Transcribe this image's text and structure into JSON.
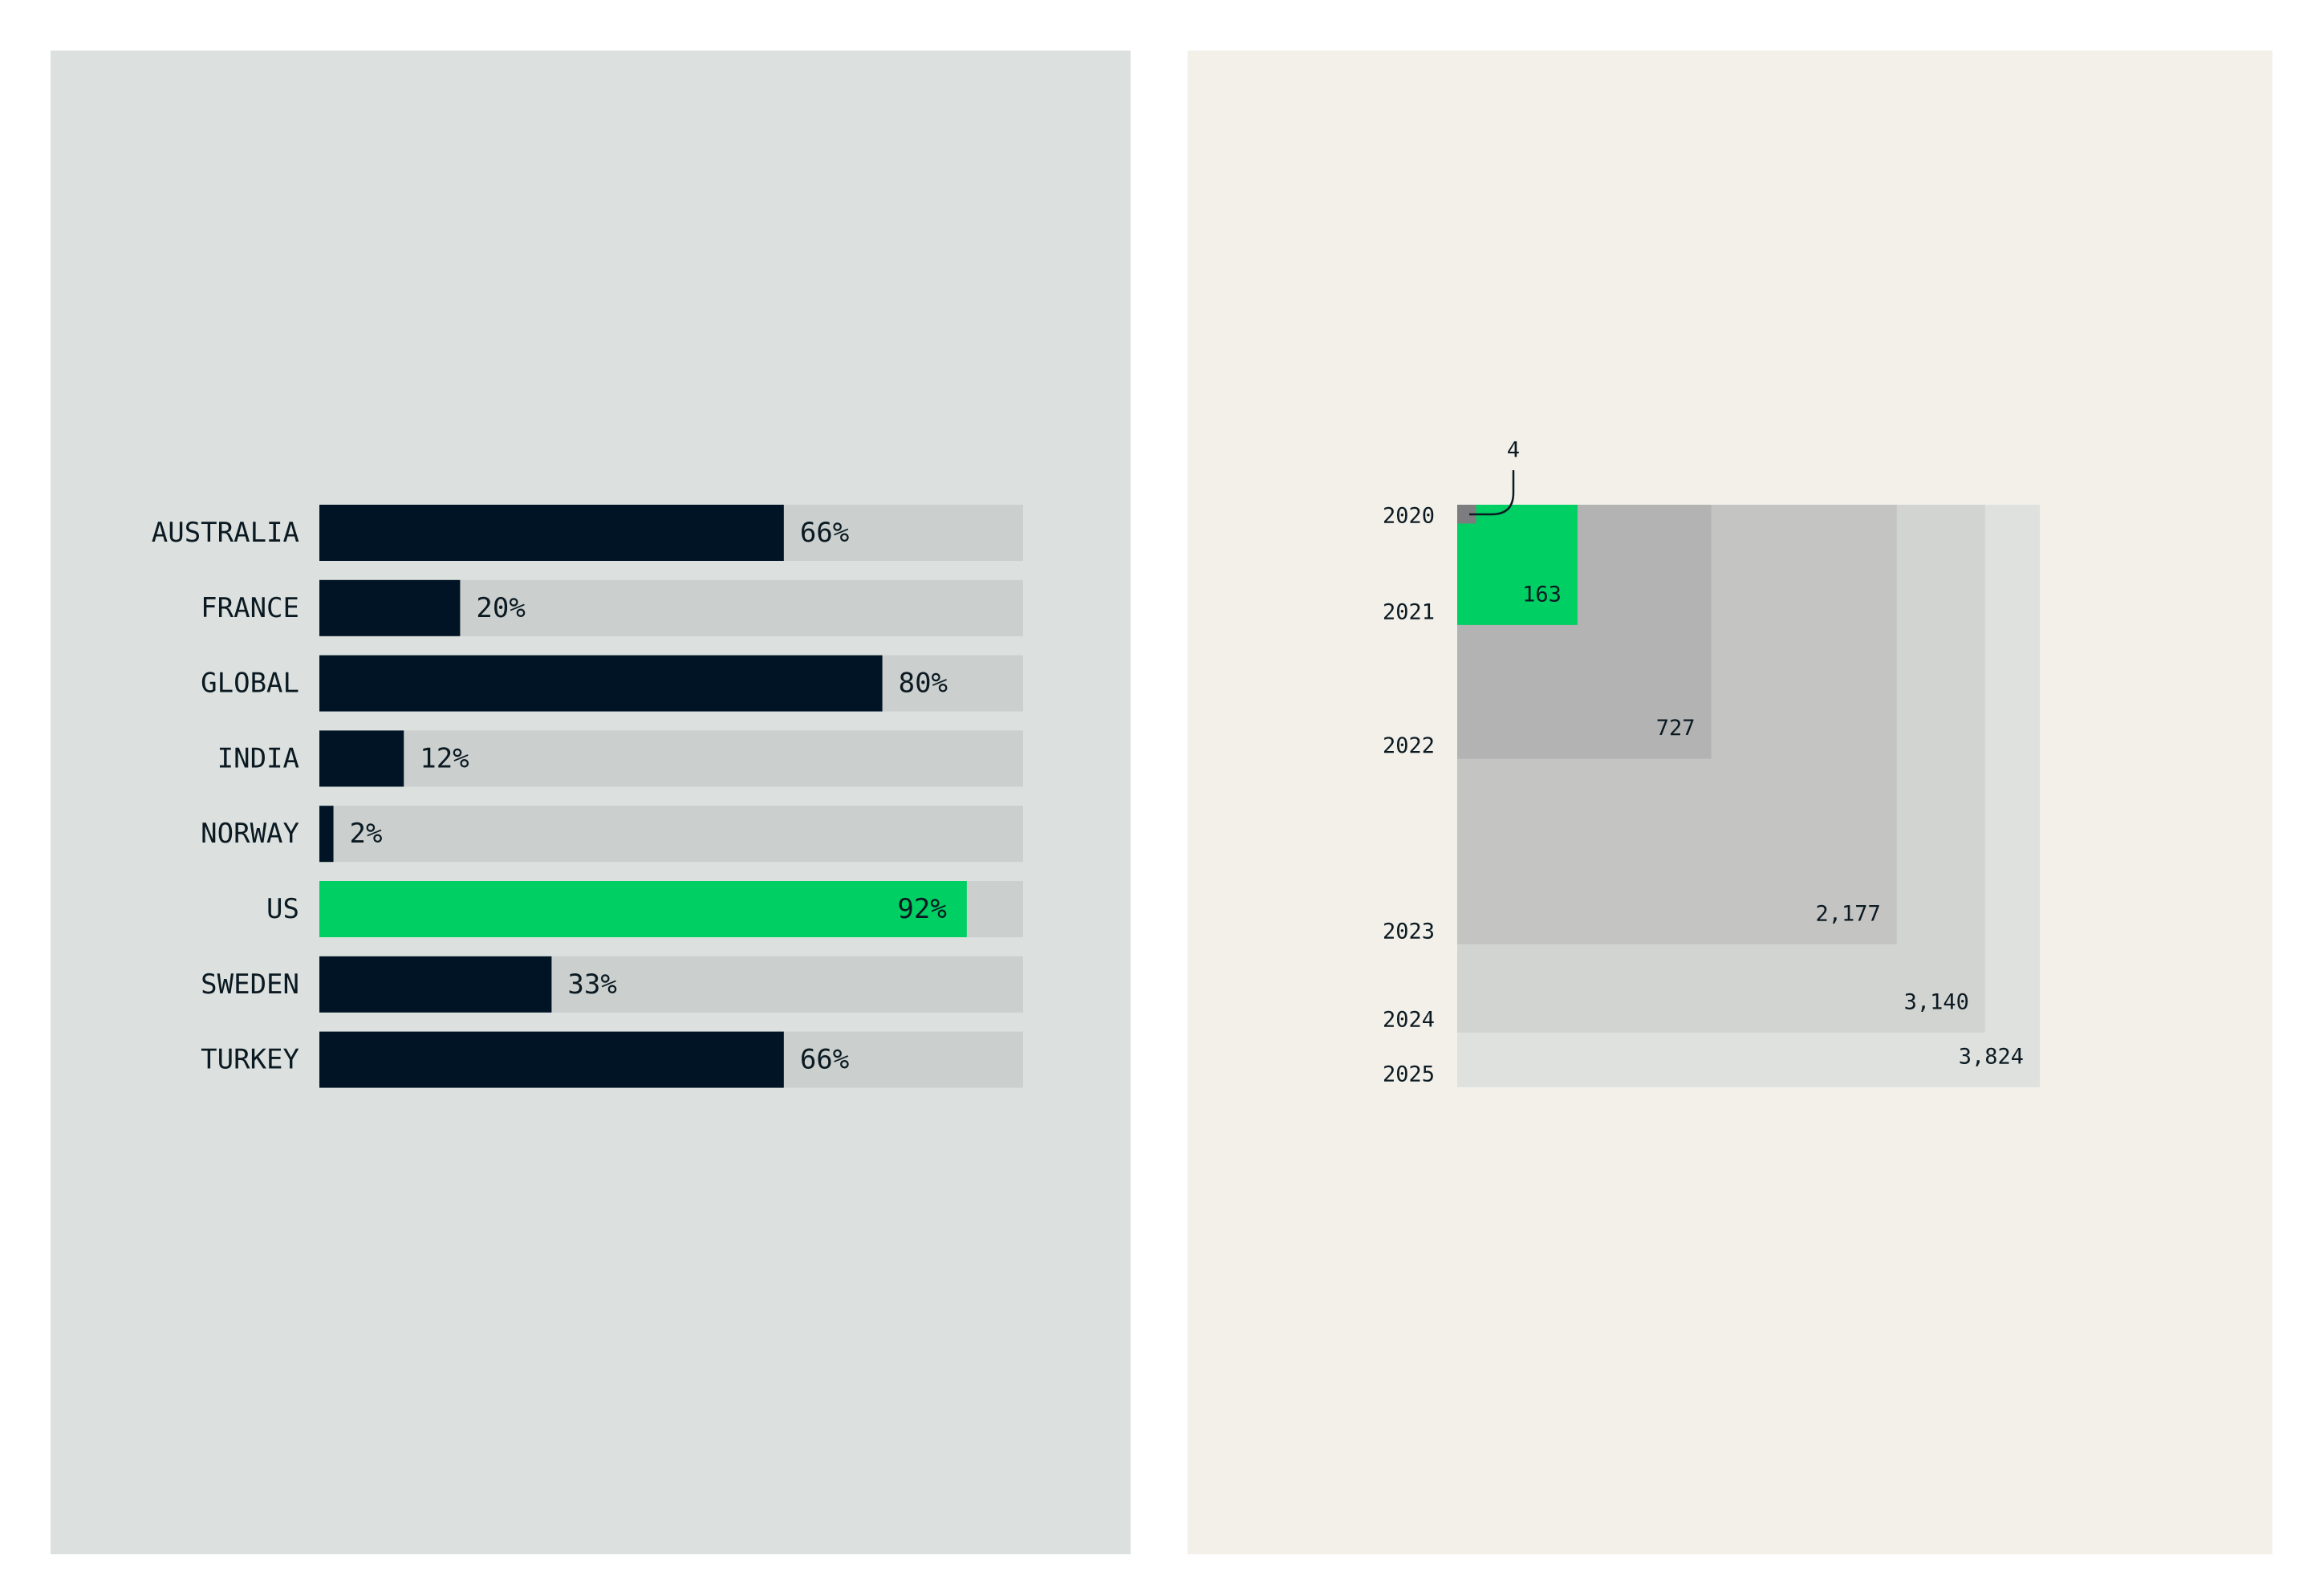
{
  "colors": {
    "left_panel_bg": "#dce1df",
    "right_panel_bg": "#f3f0ea",
    "bar_dark": "#011425",
    "highlight_green": "#00cf63",
    "bar_track": "#cbcfcd",
    "text_dark": "#0b1a22",
    "square_4": "#7d7d7f"
  },
  "chart_data": [
    {
      "type": "bar",
      "orientation": "horizontal",
      "categories": [
        "AUSTRALIA",
        "FRANCE",
        "GLOBAL",
        "INDIA",
        "NORWAY",
        "US",
        "SWEDEN",
        "TURKEY"
      ],
      "values": [
        66,
        20,
        80,
        12,
        2,
        92,
        33,
        66
      ],
      "value_labels": [
        "66%",
        "20%",
        "80%",
        "12%",
        "2%",
        "92%",
        "33%",
        "66%"
      ],
      "highlight": "US",
      "xlim": [
        0,
        100
      ],
      "unit": "%",
      "title": "",
      "xlabel": "",
      "ylabel": ""
    },
    {
      "type": "nested-squares",
      "categories": [
        "2020",
        "2021",
        "2022",
        "2023",
        "2024",
        "2025"
      ],
      "values": [
        4,
        163,
        727,
        2177,
        3140,
        3824
      ],
      "value_labels": [
        "4",
        "163",
        "727",
        "2,177",
        "3,140",
        "3,824"
      ],
      "fills": [
        "#7d7d7f",
        "#00cf63",
        "#b2b3b2",
        "#c4c4c2",
        "#d2d4d1",
        "#dee1de"
      ],
      "highlight": "2021",
      "title": ""
    }
  ]
}
